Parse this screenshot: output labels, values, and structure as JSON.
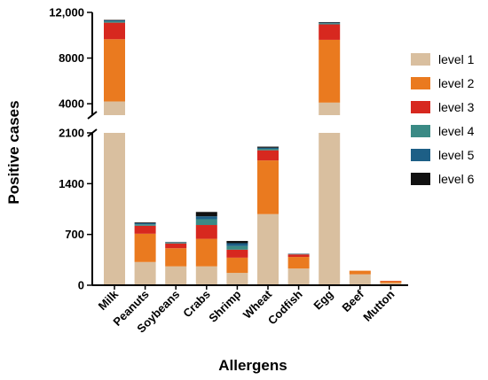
{
  "chart_data": {
    "type": "bar",
    "stacked": true,
    "broken_y_axis": true,
    "xlabel": "Allergens",
    "ylabel": "Positive cases",
    "categories": [
      "Milk",
      "Peanuts",
      "Soybeans",
      "Crabs",
      "Shrimp",
      "Wheat",
      "Codfish",
      "Egg",
      "Beef",
      "Mutton"
    ],
    "y_segments": [
      {
        "range": [
          0,
          2100
        ],
        "ticks": [
          "0",
          "700",
          "1400",
          "2100"
        ]
      },
      {
        "range": [
          3000,
          12000
        ],
        "ticks": [
          "4000",
          "8000",
          "12,000"
        ]
      }
    ],
    "legend_position": "right",
    "series": [
      {
        "name": "level 1",
        "color": "#d9bf9f",
        "values": [
          4200,
          320,
          260,
          260,
          170,
          980,
          230,
          4100,
          150,
          30
        ]
      },
      {
        "name": "level 2",
        "color": "#ea7a1f",
        "values": [
          5450,
          390,
          250,
          380,
          210,
          740,
          160,
          5500,
          50,
          25
        ]
      },
      {
        "name": "level 3",
        "color": "#d7281f",
        "values": [
          1450,
          110,
          65,
          190,
          110,
          140,
          35,
          1350,
          0,
          5
        ]
      },
      {
        "name": "level 4",
        "color": "#3a8a85",
        "values": [
          120,
          20,
          10,
          80,
          50,
          20,
          5,
          100,
          0,
          0
        ]
      },
      {
        "name": "level 5",
        "color": "#1d5f86",
        "values": [
          80,
          15,
          5,
          40,
          40,
          15,
          3,
          50,
          0,
          0
        ]
      },
      {
        "name": "level 6",
        "color": "#111111",
        "values": [
          40,
          10,
          5,
          60,
          30,
          15,
          2,
          50,
          0,
          0
        ]
      }
    ]
  }
}
